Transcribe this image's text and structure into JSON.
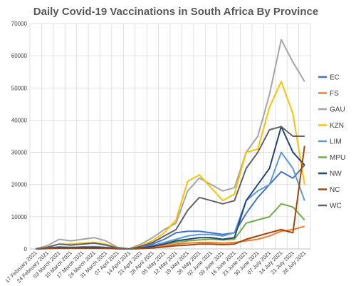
{
  "chart_data": {
    "type": "line",
    "title": "Daily Covid-19 Vaccinations in South Africa By Province",
    "xlabel": "",
    "ylabel": "",
    "ylim": [
      0,
      70000
    ],
    "yticks": [
      0,
      10000,
      20000,
      30000,
      40000,
      50000,
      60000,
      70000
    ],
    "ytick_labels": [
      "0",
      "10000",
      "20000",
      "30000",
      "40000",
      "50000",
      "60000",
      "70000"
    ],
    "categories": [
      "17 February 2021",
      "24 February 2021",
      "03 March 2021",
      "10 March 2021",
      "17 March 2021",
      "24 March 2021",
      "31 March 2021",
      "07 April 2021",
      "14 April 2021",
      "21 April 2021",
      "28 April 2021",
      "05 May 2021",
      "12 May 2021",
      "19 May 2021",
      "26 May 2021",
      "02 June 2021",
      "09 June 2021",
      "16 June 2021",
      "23 June 2021",
      "30 June 2021",
      "07 July 2021",
      "14 July 2021",
      "21 July 2021",
      "28 July 2021"
    ],
    "grid": true,
    "legend_position": "right",
    "series": [
      {
        "name": "EC",
        "color": "#4472c4",
        "values": [
          0,
          300,
          600,
          500,
          600,
          700,
          400,
          100,
          0,
          300,
          1500,
          3000,
          5000,
          5500,
          5500,
          5000,
          4500,
          5000,
          11000,
          16000,
          20000,
          24000,
          22000,
          26000
        ]
      },
      {
        "name": "FS",
        "color": "#ed7d31",
        "values": [
          0,
          100,
          200,
          200,
          200,
          300,
          200,
          50,
          0,
          100,
          500,
          1000,
          1500,
          1800,
          2000,
          2000,
          1800,
          2000,
          2500,
          3000,
          4000,
          5500,
          6000,
          7000
        ]
      },
      {
        "name": "GAU",
        "color": "#a5a5a5",
        "values": [
          0,
          1000,
          3000,
          2500,
          3000,
          3500,
          2500,
          500,
          0,
          1500,
          3500,
          6000,
          8000,
          18000,
          22000,
          20000,
          18000,
          19000,
          30000,
          35000,
          48000,
          65000,
          58000,
          52000
        ]
      },
      {
        "name": "KZN",
        "color": "#ffc000",
        "values": [
          0,
          500,
          1500,
          1500,
          1800,
          2000,
          1500,
          300,
          0,
          1000,
          2500,
          5000,
          9000,
          21000,
          23000,
          19000,
          15000,
          17000,
          30000,
          31000,
          44000,
          52000,
          42000,
          20000
        ]
      },
      {
        "name": "LIM",
        "color": "#5b9bd5",
        "values": [
          0,
          200,
          500,
          500,
          600,
          700,
          500,
          100,
          0,
          300,
          1000,
          2000,
          3000,
          4000,
          4500,
          4500,
          4000,
          5000,
          15000,
          18000,
          20000,
          30000,
          25000,
          15000
        ]
      },
      {
        "name": "MPU",
        "color": "#70ad47",
        "values": [
          0,
          150,
          400,
          350,
          400,
          450,
          300,
          80,
          0,
          200,
          800,
          1500,
          2000,
          2500,
          2800,
          3000,
          2800,
          3000,
          8000,
          9000,
          10000,
          14000,
          13000,
          9000
        ]
      },
      {
        "name": "NW",
        "color": "#264478",
        "values": [
          0,
          200,
          500,
          400,
          500,
          500,
          400,
          100,
          0,
          300,
          800,
          1500,
          2500,
          3000,
          3500,
          3500,
          3000,
          3500,
          15000,
          20000,
          25000,
          38000,
          30000,
          26000
        ]
      },
      {
        "name": "NC",
        "color": "#9e480e",
        "values": [
          0,
          100,
          200,
          200,
          200,
          200,
          150,
          50,
          0,
          100,
          300,
          600,
          1000,
          1200,
          1500,
          1500,
          1300,
          1500,
          3000,
          4000,
          5000,
          6000,
          5000,
          32000
        ]
      },
      {
        "name": "WC",
        "color": "#636363",
        "values": [
          0,
          500,
          1500,
          1200,
          1500,
          1800,
          1200,
          300,
          0,
          800,
          2000,
          4000,
          6000,
          12000,
          16000,
          15000,
          14000,
          15000,
          25000,
          30000,
          37000,
          38000,
          35000,
          35000
        ]
      }
    ]
  }
}
